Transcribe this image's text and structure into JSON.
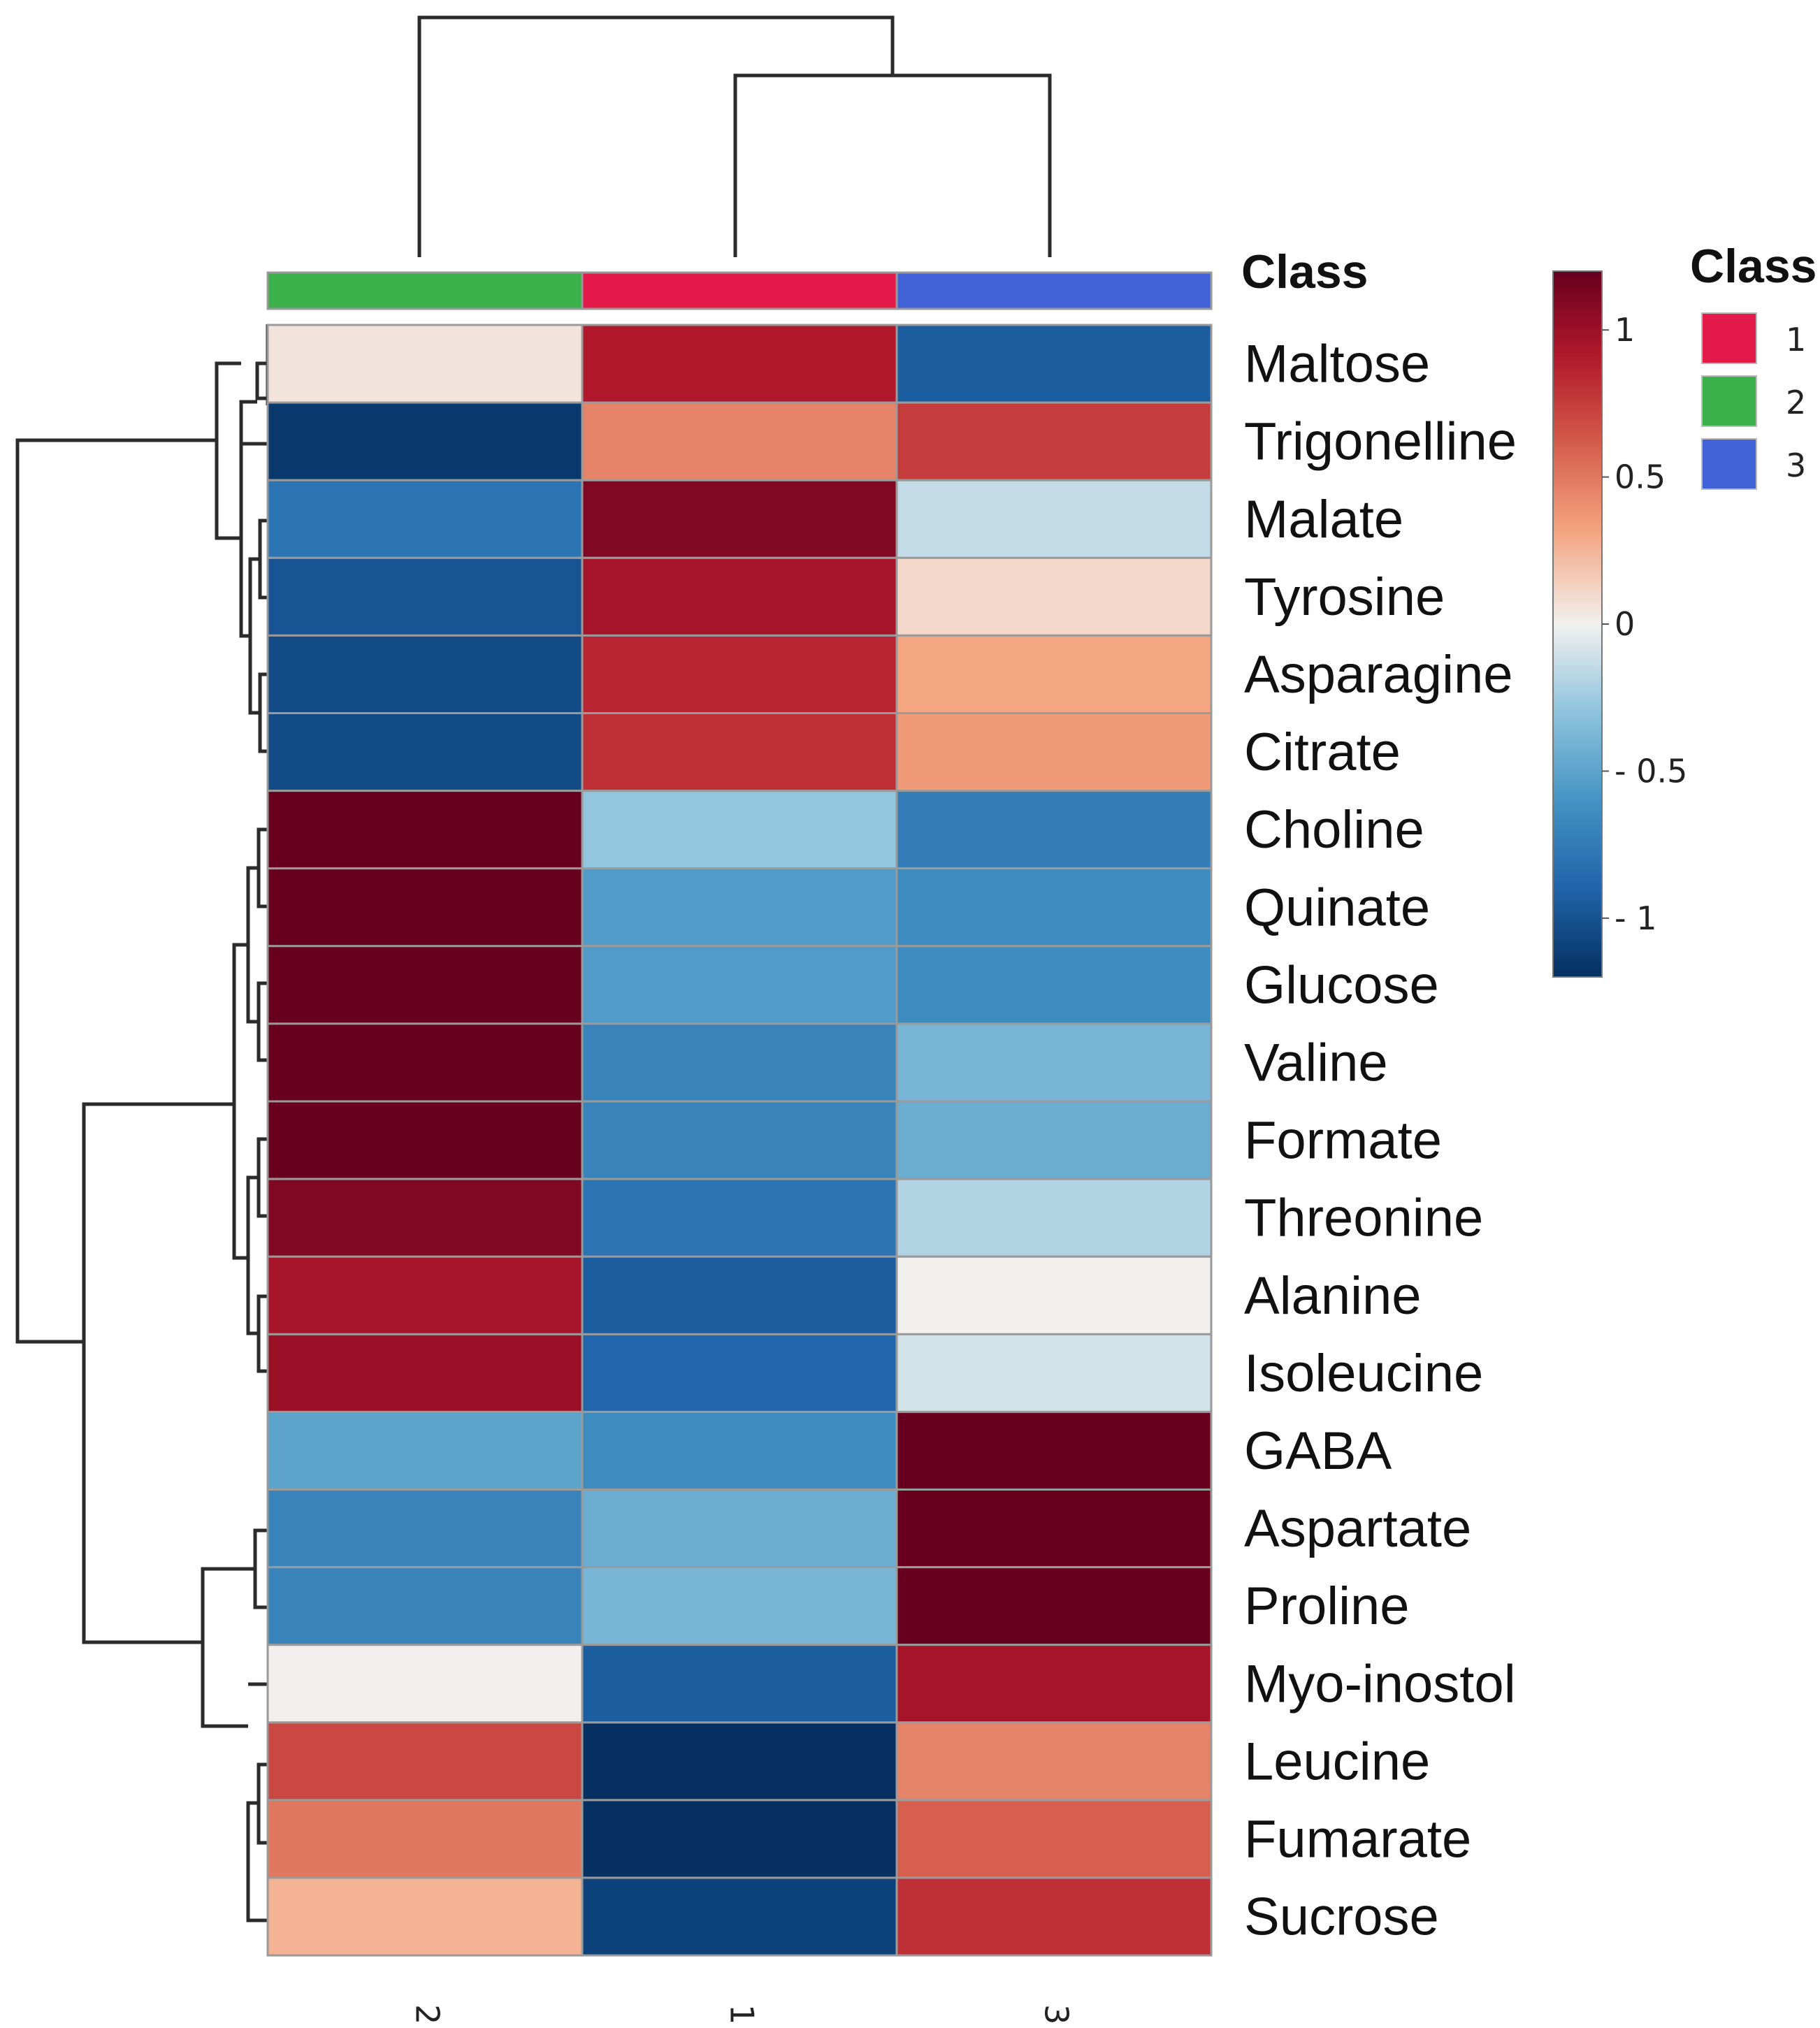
{
  "chart_data": {
    "type": "heatmap",
    "title": "",
    "annotation_title": "Class",
    "legend_title": "Class",
    "columns": [
      "2",
      "1",
      "3"
    ],
    "column_classes": [
      "2",
      "1",
      "3"
    ],
    "rows": [
      "Maltose",
      "Trigonelline",
      "Malate",
      "Tyrosine",
      "Asparagine",
      "Citrate",
      "Choline",
      "Quinate",
      "Glucose",
      "Valine",
      "Formate",
      "Threonine",
      "Alanine",
      "Isoleucine",
      "GABA",
      "Aspartate",
      "Proline",
      "Myo-inostol",
      "Leucine",
      "Fumarate",
      "Sucrose"
    ],
    "values": [
      [
        0.05,
        0.9,
        -0.95
      ],
      [
        -1.15,
        0.45,
        0.75
      ],
      [
        -0.8,
        1.1,
        -0.15
      ],
      [
        -1.0,
        0.95,
        0.1
      ],
      [
        -1.05,
        0.85,
        0.3
      ],
      [
        -1.05,
        0.8,
        0.35
      ],
      [
        1.2,
        -0.3,
        -0.75
      ],
      [
        1.25,
        -0.55,
        -0.65
      ],
      [
        1.25,
        -0.55,
        -0.65
      ],
      [
        1.2,
        -0.7,
        -0.4
      ],
      [
        1.2,
        -0.7,
        -0.45
      ],
      [
        1.1,
        -0.8,
        -0.2
      ],
      [
        0.95,
        -0.95,
        0.0
      ],
      [
        1.0,
        -0.9,
        -0.1
      ],
      [
        -0.5,
        -0.65,
        1.25
      ],
      [
        -0.7,
        -0.45,
        1.2
      ],
      [
        -0.7,
        -0.4,
        1.2
      ],
      [
        0.0,
        -0.95,
        0.95
      ],
      [
        0.7,
        -1.2,
        0.45
      ],
      [
        0.5,
        -1.2,
        0.6
      ],
      [
        0.25,
        -1.1,
        0.8
      ]
    ],
    "colorbar": {
      "ticks": [
        "1",
        "0.5",
        "0",
        "- 0.5",
        "- 1"
      ],
      "tick_values": [
        1,
        0.5,
        0,
        -0.5,
        -1
      ],
      "range": [
        -1.2,
        1.2
      ],
      "low_color": "#053061",
      "mid_color": "#f7f7f7",
      "high_color": "#67001f"
    },
    "class_legend": [
      {
        "label": "1",
        "color": "#e41b4a"
      },
      {
        "label": "2",
        "color": "#3bb04a"
      },
      {
        "label": "3",
        "color": "#4262d8"
      }
    ],
    "column_class_colors": [
      "#3bb04a",
      "#e41b4a",
      "#4262d8"
    ]
  }
}
